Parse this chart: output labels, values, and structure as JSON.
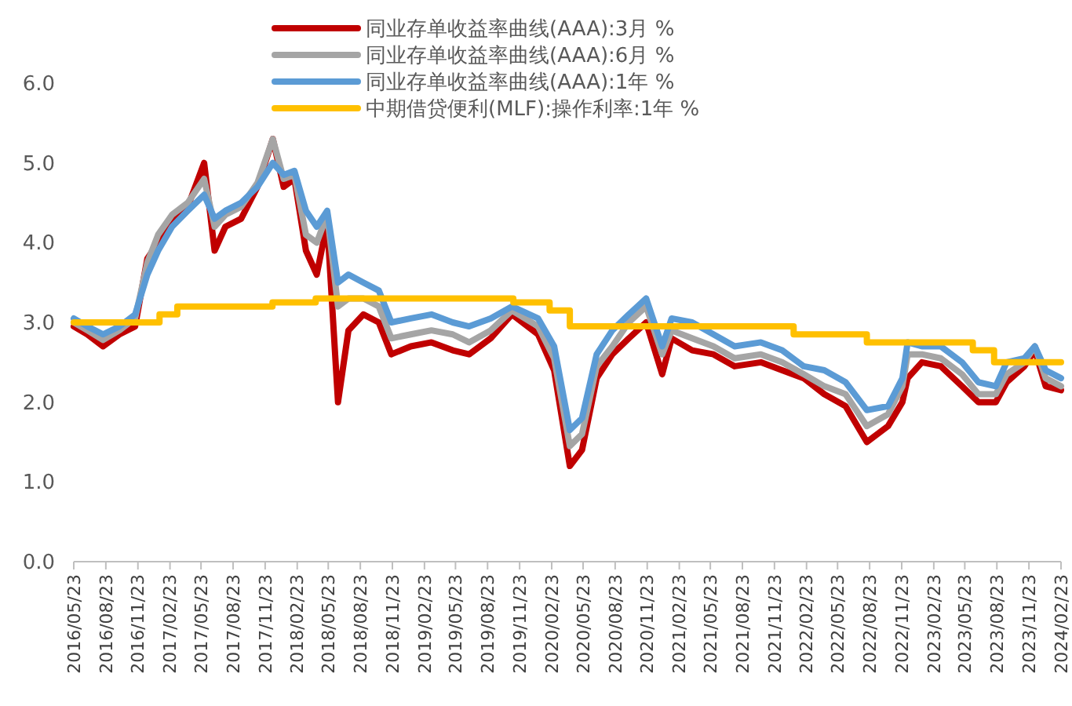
{
  "chart_data": {
    "type": "line",
    "legend": "top",
    "grid": false,
    "x": [
      "2016-05-23",
      "2016-07-01",
      "2016-08-15",
      "2016-10-01",
      "2016-11-15",
      "2016-12-20",
      "2017-01-20",
      "2017-03-01",
      "2017-04-15",
      "2017-06-01",
      "2017-07-01",
      "2017-08-01",
      "2017-09-15",
      "2017-11-01",
      "2017-12-15",
      "2018-01-15",
      "2018-02-15",
      "2018-03-20",
      "2018-04-20",
      "2018-05-20",
      "2018-06-20",
      "2018-07-20",
      "2018-09-01",
      "2018-10-15",
      "2018-11-20",
      "2019-01-15",
      "2019-03-15",
      "2019-05-15",
      "2019-07-01",
      "2019-09-01",
      "2019-11-01",
      "2020-01-15",
      "2020-03-01",
      "2020-04-15",
      "2020-05-20",
      "2020-07-01",
      "2020-08-15",
      "2020-10-01",
      "2020-11-20",
      "2021-01-05",
      "2021-02-01",
      "2021-04-01",
      "2021-06-01",
      "2021-08-01",
      "2021-10-15",
      "2021-12-15",
      "2022-02-15",
      "2022-04-15",
      "2022-06-15",
      "2022-08-15",
      "2022-10-15",
      "2022-11-25",
      "2022-12-10",
      "2023-01-20",
      "2023-03-15",
      "2023-05-15",
      "2023-07-01",
      "2023-08-20",
      "2023-09-20",
      "2023-11-10",
      "2023-12-10",
      "2024-01-10",
      "2024-02-23"
    ],
    "series": [
      {
        "name": "同业存单收益率曲线(AAA):3月 %",
        "color": "#c00000",
        "values": [
          2.95,
          2.85,
          2.7,
          2.85,
          2.95,
          3.8,
          4.0,
          4.3,
          4.45,
          5.0,
          3.9,
          4.2,
          4.3,
          4.7,
          5.3,
          4.7,
          4.8,
          3.9,
          3.6,
          4.25,
          2.0,
          2.9,
          3.1,
          3.0,
          2.6,
          2.7,
          2.75,
          2.65,
          2.6,
          2.8,
          3.1,
          2.85,
          2.4,
          1.2,
          1.4,
          2.3,
          2.6,
          2.8,
          3.0,
          2.35,
          2.8,
          2.65,
          2.6,
          2.45,
          2.5,
          2.4,
          2.3,
          2.1,
          1.95,
          1.5,
          1.7,
          2.0,
          2.3,
          2.5,
          2.45,
          2.2,
          2.0,
          2.0,
          2.25,
          2.45,
          2.65,
          2.2,
          2.15
        ]
      },
      {
        "name": "同业存单收益率曲线(AAA):6月 %",
        "color": "#a5a5a5",
        "values": [
          3.0,
          2.9,
          2.78,
          2.9,
          3.05,
          3.75,
          4.1,
          4.35,
          4.5,
          4.8,
          4.2,
          4.35,
          4.45,
          4.75,
          5.3,
          4.8,
          4.85,
          4.1,
          4.0,
          4.35,
          3.2,
          3.3,
          3.3,
          3.2,
          2.8,
          2.85,
          2.9,
          2.85,
          2.75,
          2.9,
          3.15,
          2.95,
          2.55,
          1.45,
          1.6,
          2.45,
          2.7,
          3.0,
          3.2,
          2.6,
          2.9,
          2.8,
          2.7,
          2.55,
          2.6,
          2.5,
          2.35,
          2.2,
          2.1,
          1.7,
          1.85,
          2.2,
          2.6,
          2.6,
          2.55,
          2.35,
          2.1,
          2.1,
          2.35,
          2.5,
          2.7,
          2.3,
          2.2
        ]
      },
      {
        "name": "同业存单收益率曲线(AAA):1年 %",
        "color": "#5b9bd5",
        "values": [
          3.05,
          2.95,
          2.85,
          2.95,
          3.1,
          3.6,
          3.9,
          4.2,
          4.4,
          4.6,
          4.3,
          4.4,
          4.5,
          4.7,
          5.0,
          4.85,
          4.9,
          4.4,
          4.2,
          4.4,
          3.5,
          3.6,
          3.5,
          3.4,
          3.0,
          3.05,
          3.1,
          3.0,
          2.95,
          3.05,
          3.2,
          3.05,
          2.7,
          1.65,
          1.8,
          2.6,
          2.9,
          3.1,
          3.3,
          2.7,
          3.05,
          3.0,
          2.85,
          2.7,
          2.75,
          2.65,
          2.45,
          2.4,
          2.25,
          1.9,
          1.95,
          2.3,
          2.75,
          2.7,
          2.7,
          2.5,
          2.25,
          2.2,
          2.5,
          2.55,
          2.7,
          2.4,
          2.3
        ]
      },
      {
        "name": "中期借贷便利(MLF):操作利率:1年 %",
        "color": "#ffc000",
        "type": "step",
        "x": [
          "2016-05-23",
          "2017-01-24",
          "2017-03-16",
          "2017-12-14",
          "2018-04-17",
          "2019-11-05",
          "2020-02-17",
          "2020-04-15",
          "2022-01-17",
          "2022-08-15",
          "2023-06-15",
          "2023-08-15",
          "2024-02-23"
        ],
        "values": [
          3.0,
          3.1,
          3.2,
          3.25,
          3.3,
          3.25,
          3.15,
          2.95,
          2.85,
          2.75,
          2.65,
          2.5,
          2.5
        ]
      }
    ],
    "xlim": [
      "2016-05-23",
      "2024-02-23"
    ],
    "xticks": [
      {
        "value": "2016-05-23",
        "label": "2016/05/23"
      },
      {
        "value": "2016-08-23",
        "label": "2016/08/23"
      },
      {
        "value": "2016-11-23",
        "label": "2016/11/23"
      },
      {
        "value": "2017-02-23",
        "label": "2017/02/23"
      },
      {
        "value": "2017-05-23",
        "label": "2017/05/23"
      },
      {
        "value": "2017-08-23",
        "label": "2017/08/23"
      },
      {
        "value": "2017-11-23",
        "label": "2017/11/23"
      },
      {
        "value": "2018-02-23",
        "label": "2018/02/23"
      },
      {
        "value": "2018-05-23",
        "label": "2018/05/23"
      },
      {
        "value": "2018-08-23",
        "label": "2018/08/23"
      },
      {
        "value": "2018-11-23",
        "label": "2018/11/23"
      },
      {
        "value": "2019-02-23",
        "label": "2019/02/23"
      },
      {
        "value": "2019-05-23",
        "label": "2019/05/23"
      },
      {
        "value": "2019-08-23",
        "label": "2019/08/23"
      },
      {
        "value": "2019-11-23",
        "label": "2019/11/23"
      },
      {
        "value": "2020-02-23",
        "label": "2020/02/23"
      },
      {
        "value": "2020-05-23",
        "label": "2020/05/23"
      },
      {
        "value": "2020-08-23",
        "label": "2020/08/23"
      },
      {
        "value": "2020-11-23",
        "label": "2020/11/23"
      },
      {
        "value": "2021-02-23",
        "label": "2021/02/23"
      },
      {
        "value": "2021-05-23",
        "label": "2021/05/23"
      },
      {
        "value": "2021-08-23",
        "label": "2021/08/23"
      },
      {
        "value": "2021-11-23",
        "label": "2021/11/23"
      },
      {
        "value": "2022-02-23",
        "label": "2022/02/23"
      },
      {
        "value": "2022-05-23",
        "label": "2022/05/23"
      },
      {
        "value": "2022-08-23",
        "label": "2022/08/23"
      },
      {
        "value": "2022-11-23",
        "label": "2022/11/23"
      },
      {
        "value": "2023-02-23",
        "label": "2023/02/23"
      },
      {
        "value": "2023-05-23",
        "label": "2023/05/23"
      },
      {
        "value": "2023-08-23",
        "label": "2023/08/23"
      },
      {
        "value": "2023-11-23",
        "label": "2023/11/23"
      },
      {
        "value": "2024-02-23",
        "label": "2024/02/23"
      }
    ],
    "ylim": [
      0,
      6
    ],
    "yticks": [
      {
        "value": 0,
        "label": "0.0"
      },
      {
        "value": 1,
        "label": "1.0"
      },
      {
        "value": 2,
        "label": "2.0"
      },
      {
        "value": 3,
        "label": "3.0"
      },
      {
        "value": 4,
        "label": "4.0"
      },
      {
        "value": 5,
        "label": "5.0"
      },
      {
        "value": 6,
        "label": "6.0"
      }
    ]
  }
}
